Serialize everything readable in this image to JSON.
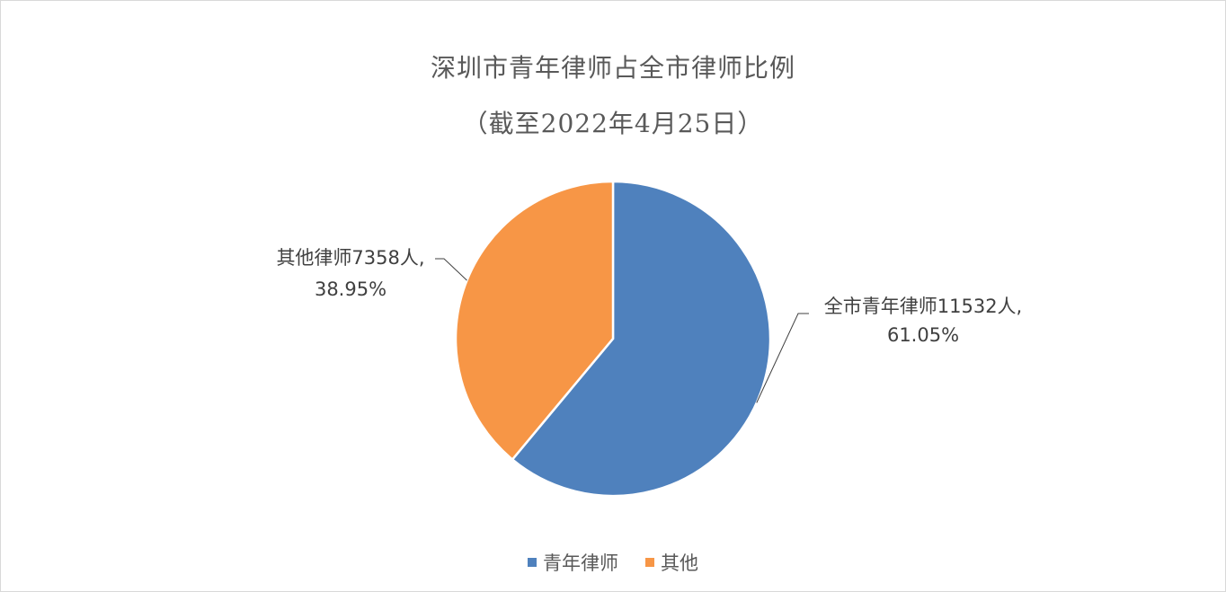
{
  "chart_data": {
    "type": "pie",
    "title": "深圳市青年律师占全市律师比例",
    "subtitle": "（截至2022年4月25日）",
    "categories": [
      "青年律师",
      "其他"
    ],
    "values": [
      11532,
      7358
    ],
    "percentages": [
      61.05,
      38.95
    ],
    "colors": [
      "#4f81bd",
      "#f79646"
    ],
    "data_labels": [
      {
        "line1": "全市青年律师11532人,",
        "line2": "61.05%"
      },
      {
        "line1": "其他律师7358人,",
        "line2": "38.95%"
      }
    ],
    "legend": {
      "position": "bottom",
      "entries": [
        "青年律师",
        "其他"
      ]
    }
  }
}
